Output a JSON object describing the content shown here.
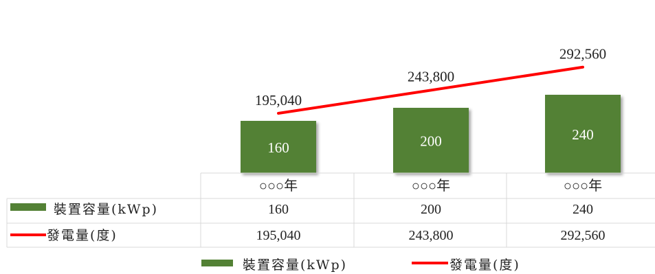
{
  "chart_data": {
    "type": "bar",
    "categories": [
      "○○○年",
      "○○○年",
      "○○○年"
    ],
    "series": [
      {
        "name": "裝置容量(kWp)",
        "type": "bar",
        "color": "#538135",
        "values": [
          160,
          200,
          240
        ]
      },
      {
        "name": "發電量(度)",
        "type": "line",
        "color": "#ff0000",
        "values": [
          195040,
          243800,
          292560
        ]
      }
    ],
    "bar_labels": [
      "160",
      "200",
      "240"
    ],
    "line_labels": [
      "195,040",
      "243,800",
      "292,560"
    ],
    "table": {
      "categories": [
        "○○○年",
        "○○○年",
        "○○○年"
      ],
      "rows": [
        {
          "label": "裝置容量(kWp)",
          "cells": [
            "160",
            "200",
            "240"
          ]
        },
        {
          "label": "發電量(度)",
          "cells": [
            "195,040",
            "243,800",
            "292,560"
          ]
        }
      ]
    },
    "legend": {
      "position": "bottom",
      "items": [
        "裝置容量(kWp)",
        "發電量(度)"
      ]
    },
    "ylim_bar": [
      0,
      272
    ],
    "ylim_line": [
      0,
      440000
    ],
    "grid": false
  }
}
